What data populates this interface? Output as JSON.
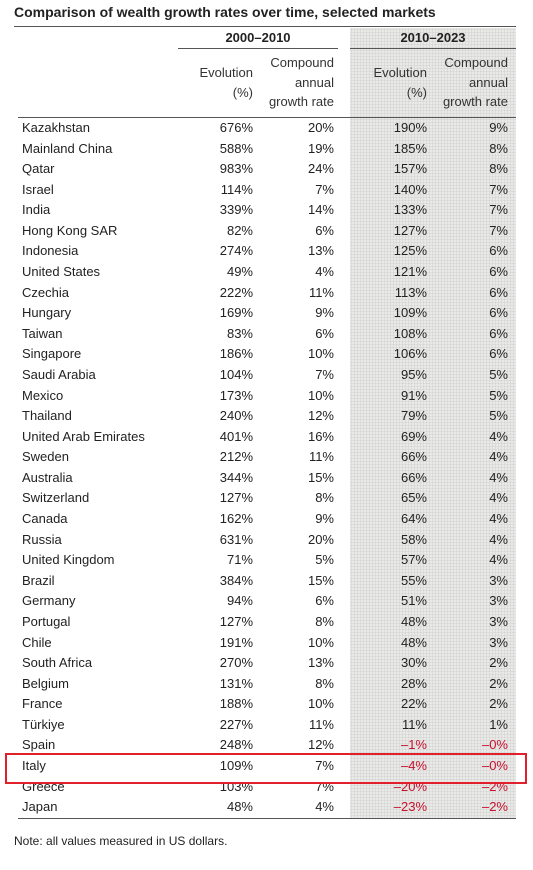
{
  "title": "Comparison of wealth growth rates over time, selected markets",
  "column_groups": [
    "2000–2010",
    "2010–2023"
  ],
  "column_headers": [
    "Evolution\n(%)",
    "Compound\nannual\ngrowth rate",
    "Evolution\n(%)",
    "Compound\nannual\ngrowth rate"
  ],
  "table": {
    "rows": [
      [
        "Kazakhstan",
        "676%",
        "20%",
        "190%",
        "9%"
      ],
      [
        "Mainland China",
        "588%",
        "19%",
        "185%",
        "8%"
      ],
      [
        "Qatar",
        "983%",
        "24%",
        "157%",
        "8%"
      ],
      [
        "Israel",
        "114%",
        "7%",
        "140%",
        "7%"
      ],
      [
        "India",
        "339%",
        "14%",
        "133%",
        "7%"
      ],
      [
        "Hong Kong SAR",
        "82%",
        "6%",
        "127%",
        "7%"
      ],
      [
        "Indonesia",
        "274%",
        "13%",
        "125%",
        "6%"
      ],
      [
        "United States",
        "49%",
        "4%",
        "121%",
        "6%"
      ],
      [
        "Czechia",
        "222%",
        "11%",
        "113%",
        "6%"
      ],
      [
        "Hungary",
        "169%",
        "9%",
        "109%",
        "6%"
      ],
      [
        "Taiwan",
        "83%",
        "6%",
        "108%",
        "6%"
      ],
      [
        "Singapore",
        "186%",
        "10%",
        "106%",
        "6%"
      ],
      [
        "Saudi Arabia",
        "104%",
        "7%",
        "95%",
        "5%"
      ],
      [
        "Mexico",
        "173%",
        "10%",
        "91%",
        "5%"
      ],
      [
        "Thailand",
        "240%",
        "12%",
        "79%",
        "5%"
      ],
      [
        "United Arab Emirates",
        "401%",
        "16%",
        "69%",
        "4%"
      ],
      [
        "Sweden",
        "212%",
        "11%",
        "66%",
        "4%"
      ],
      [
        "Australia",
        "344%",
        "15%",
        "66%",
        "4%"
      ],
      [
        "Switzerland",
        "127%",
        "8%",
        "65%",
        "4%"
      ],
      [
        "Canada",
        "162%",
        "9%",
        "64%",
        "4%"
      ],
      [
        "Russia",
        "631%",
        "20%",
        "58%",
        "4%"
      ],
      [
        "United Kingdom",
        "71%",
        "5%",
        "57%",
        "4%"
      ],
      [
        "Brazil",
        "384%",
        "15%",
        "55%",
        "3%"
      ],
      [
        "Germany",
        "94%",
        "6%",
        "51%",
        "3%"
      ],
      [
        "Portugal",
        "127%",
        "8%",
        "48%",
        "3%"
      ],
      [
        "Chile",
        "191%",
        "10%",
        "48%",
        "3%"
      ],
      [
        "South Africa",
        "270%",
        "13%",
        "30%",
        "2%"
      ],
      [
        "Belgium",
        "131%",
        "8%",
        "28%",
        "2%"
      ],
      [
        "France",
        "188%",
        "10%",
        "22%",
        "2%"
      ],
      [
        "Türkiye",
        "227%",
        "11%",
        "11%",
        "1%"
      ],
      [
        "Spain",
        "248%",
        "12%",
        "–1%",
        "–0%"
      ],
      [
        "Italy",
        "109%",
        "7%",
        "–4%",
        "–0%"
      ],
      [
        "Greece",
        "103%",
        "7%",
        "–20%",
        "–2%"
      ],
      [
        "Japan",
        "48%",
        "4%",
        "–23%",
        "–2%"
      ]
    ]
  },
  "note": "Note: all values measured in US dollars."
}
